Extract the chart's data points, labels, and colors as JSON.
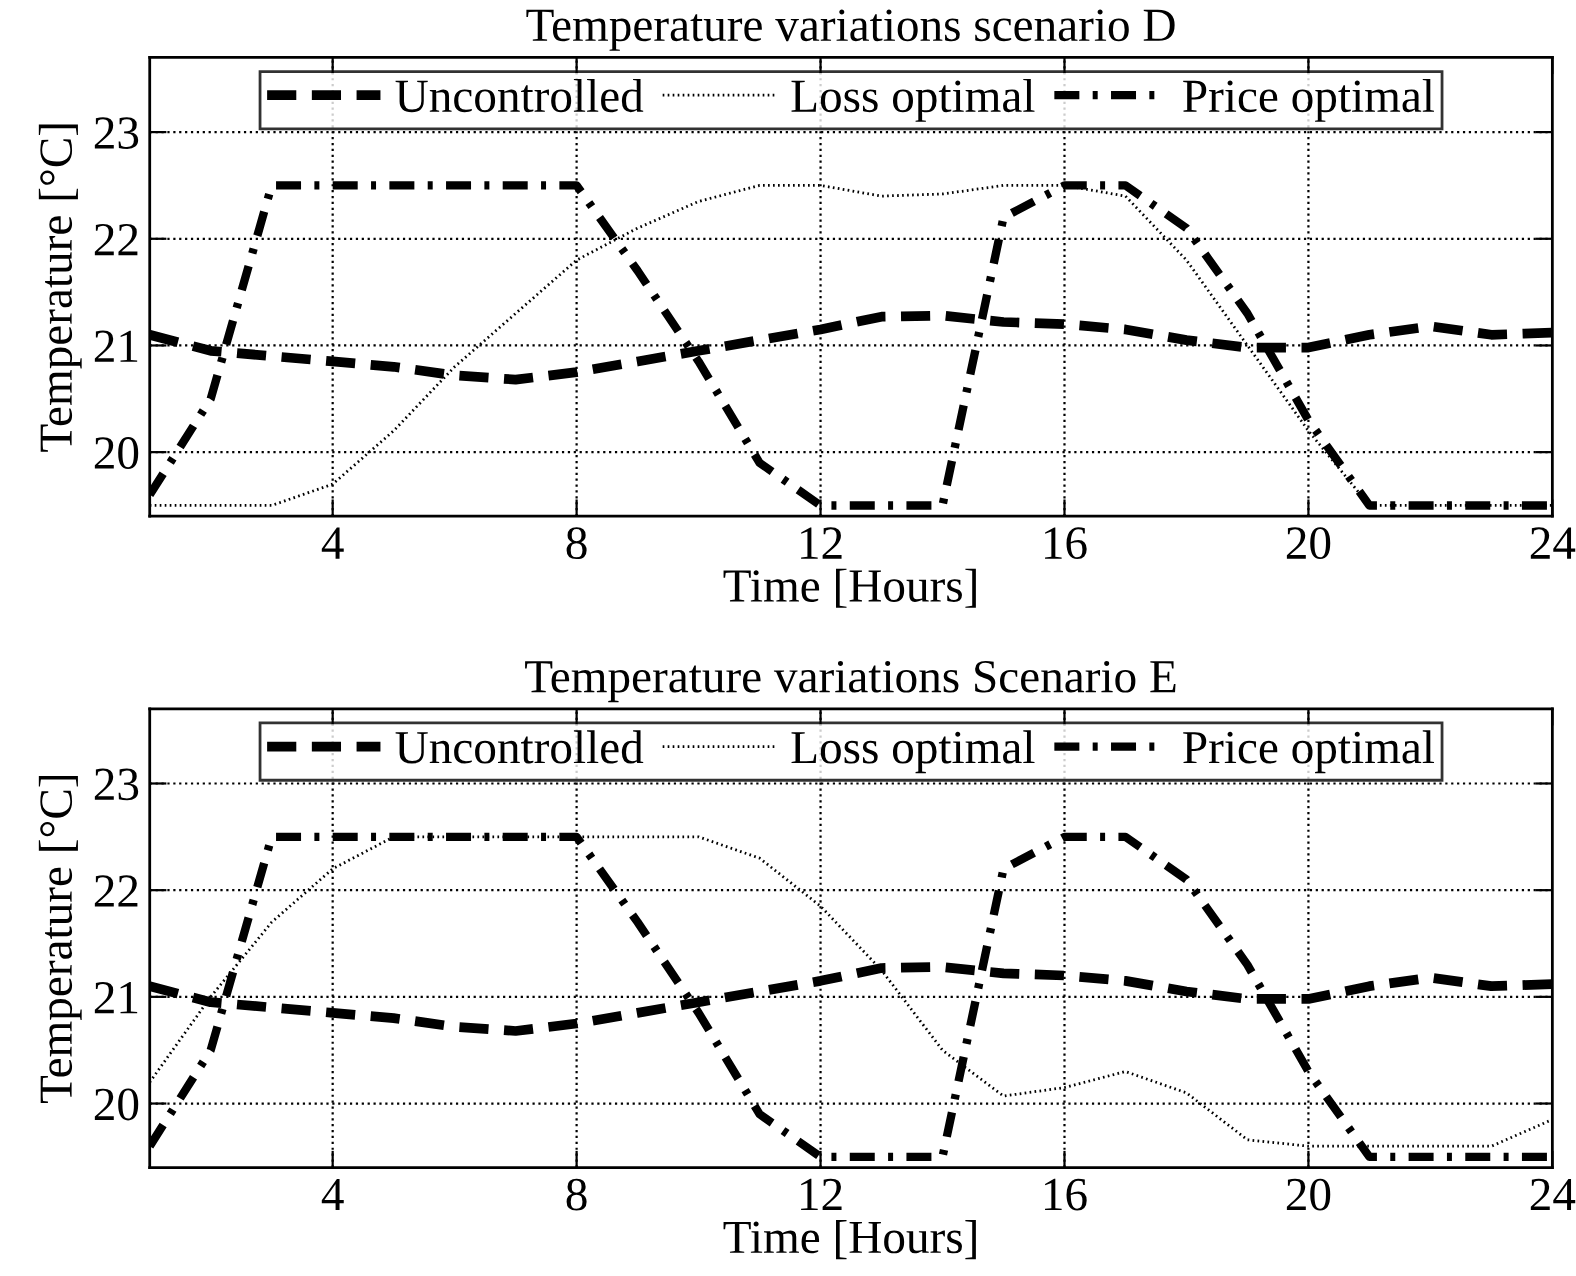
{
  "chart_data": [
    {
      "type": "line",
      "title": "Temperature variations scenario D",
      "xlabel": "Time [Hours]",
      "ylabel": "Temperature [°C]",
      "x": [
        1,
        2,
        3,
        4,
        5,
        6,
        7,
        8,
        9,
        10,
        11,
        12,
        13,
        14,
        15,
        16,
        17,
        18,
        19,
        20,
        21,
        22,
        23,
        24
      ],
      "xlim": [
        1,
        24
      ],
      "xticks": [
        4,
        8,
        12,
        16,
        20,
        24
      ],
      "ylim": [
        19.4,
        23.7
      ],
      "yticks": [
        20,
        21,
        22,
        23
      ],
      "grid": true,
      "legend": "top",
      "series": [
        {
          "name": "Uncontrolled",
          "color": "#000000",
          "line_style": "dashed",
          "values": [
            21.1,
            20.95,
            20.9,
            20.85,
            20.8,
            20.72,
            20.68,
            20.75,
            20.85,
            20.95,
            21.05,
            21.15,
            21.27,
            21.28,
            21.22,
            21.2,
            21.15,
            21.05,
            20.98,
            20.98,
            21.1,
            21.18,
            21.1,
            21.12
          ]
        },
        {
          "name": "Loss optimal",
          "color": "#000000",
          "line_style": "dotted",
          "values": [
            19.5,
            19.5,
            19.5,
            19.7,
            20.2,
            20.8,
            21.3,
            21.8,
            22.1,
            22.35,
            22.5,
            22.5,
            22.4,
            22.42,
            22.5,
            22.5,
            22.4,
            21.8,
            21.0,
            20.2,
            19.5,
            19.5,
            19.5,
            19.5
          ]
        },
        {
          "name": "Price optimal",
          "color": "#000000",
          "line_style": "dashdot",
          "values": [
            19.6,
            20.5,
            22.5,
            22.5,
            22.5,
            22.5,
            22.5,
            22.5,
            21.7,
            20.85,
            19.9,
            19.5,
            19.5,
            19.5,
            22.2,
            22.5,
            22.5,
            22.1,
            21.3,
            20.3,
            19.5,
            19.5,
            19.5,
            19.5
          ]
        }
      ]
    },
    {
      "type": "line",
      "title": "Temperature variations Scenario E",
      "xlabel": "Time [Hours]",
      "ylabel": "Temperature [°C]",
      "x": [
        1,
        2,
        3,
        4,
        5,
        6,
        7,
        8,
        9,
        10,
        11,
        12,
        13,
        14,
        15,
        16,
        17,
        18,
        19,
        20,
        21,
        22,
        23,
        24
      ],
      "xlim": [
        1,
        24
      ],
      "xticks": [
        4,
        8,
        12,
        16,
        20,
        24
      ],
      "ylim": [
        19.4,
        23.7
      ],
      "yticks": [
        20,
        21,
        22,
        23
      ],
      "grid": true,
      "legend": "top",
      "series": [
        {
          "name": "Uncontrolled",
          "color": "#000000",
          "line_style": "dashed",
          "values": [
            21.1,
            20.95,
            20.9,
            20.85,
            20.8,
            20.72,
            20.68,
            20.75,
            20.85,
            20.95,
            21.05,
            21.15,
            21.27,
            21.28,
            21.22,
            21.2,
            21.15,
            21.05,
            20.98,
            20.98,
            21.1,
            21.18,
            21.1,
            21.12
          ]
        },
        {
          "name": "Loss optimal",
          "color": "#000000",
          "line_style": "dotted",
          "values": [
            20.2,
            21.0,
            21.7,
            22.2,
            22.5,
            22.5,
            22.5,
            22.5,
            22.5,
            22.5,
            22.3,
            21.85,
            21.25,
            20.5,
            20.07,
            20.15,
            20.3,
            20.1,
            19.66,
            19.6,
            19.6,
            19.6,
            19.6,
            19.85
          ]
        },
        {
          "name": "Price optimal",
          "color": "#000000",
          "line_style": "dashdot",
          "values": [
            19.6,
            20.5,
            22.5,
            22.5,
            22.5,
            22.5,
            22.5,
            22.5,
            21.7,
            20.85,
            19.9,
            19.5,
            19.5,
            19.5,
            22.2,
            22.5,
            22.5,
            22.1,
            21.3,
            20.3,
            19.5,
            19.5,
            19.5,
            19.5
          ]
        }
      ]
    }
  ]
}
